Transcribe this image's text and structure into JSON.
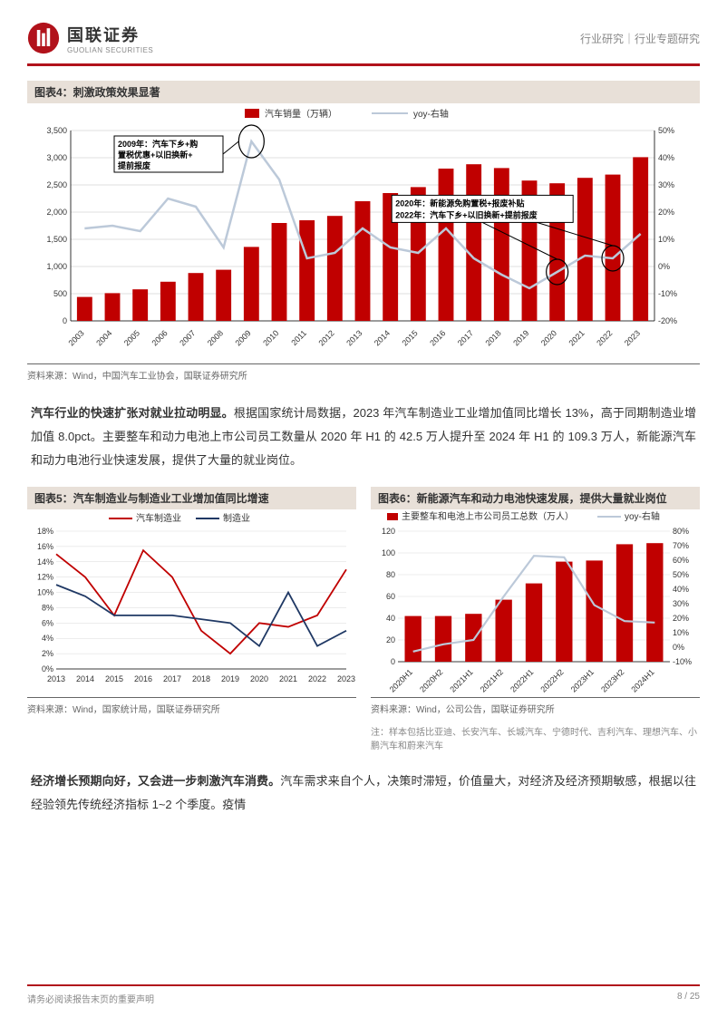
{
  "header": {
    "brand_cn": "国联证券",
    "brand_en": "GUOLIAN SECURITIES",
    "right": "行业研究｜行业专题研究",
    "logo_color": "#b1121b"
  },
  "fig4": {
    "title": "图表4：刺激政策效果显著",
    "legend_bar": "汽车销量（万辆）",
    "legend_line": "yoy-右轴",
    "bar_color": "#c00000",
    "line_color": "#bcc9d9",
    "years": [
      "2003",
      "2004",
      "2005",
      "2006",
      "2007",
      "2008",
      "2009",
      "2010",
      "2011",
      "2012",
      "2013",
      "2014",
      "2015",
      "2016",
      "2017",
      "2018",
      "2019",
      "2020",
      "2021",
      "2022",
      "2023"
    ],
    "values": [
      440,
      510,
      580,
      720,
      880,
      940,
      1360,
      1800,
      1850,
      1930,
      2200,
      2350,
      2460,
      2800,
      2880,
      2810,
      2580,
      2530,
      2630,
      2690,
      3010
    ],
    "yoy": [
      14,
      15,
      13,
      25,
      22,
      7,
      46,
      32,
      3,
      5,
      14,
      7,
      5,
      14,
      3,
      -3,
      -8,
      -2,
      4,
      3,
      12
    ],
    "y_left": {
      "min": 0,
      "max": 3500,
      "step": 500
    },
    "y_right": {
      "min": -20,
      "max": 50,
      "step": 10
    },
    "anno1_lines": [
      "2009年：汽车下乡+购",
      "置税优惠+以旧换新+",
      "提前报废"
    ],
    "anno2_lines": [
      "2020年：新能源免购置税+报废补贴",
      "2022年：汽车下乡+以旧换新+提前报废"
    ],
    "source": "资料来源：Wind，中国汽车工业协会，国联证券研究所",
    "plot_bg": "#ffffff",
    "grid_color": "#bfbfbf",
    "bar_width": 0.55
  },
  "paragraph1": {
    "bold": "汽车行业的快速扩张对就业拉动明显。",
    "rest": "根据国家统计局数据，2023 年汽车制造业工业增加值同比增长 13%，高于同期制造业增加值 8.0pct。主要整车和动力电池上市公司员工数量从 2020 年 H1 的 42.5 万人提升至 2024 年 H1 的 109.3 万人，新能源汽车和动力电池行业快速发展，提供了大量的就业岗位。"
  },
  "fig5": {
    "title": "图表5：汽车制造业与制造业工业增加值同比增速",
    "legend_a": "汽车制造业",
    "legend_b": "制造业",
    "color_a": "#c00000",
    "color_b": "#1f3864",
    "years": [
      "2013",
      "2014",
      "2015",
      "2016",
      "2017",
      "2018",
      "2019",
      "2020",
      "2021",
      "2022",
      "2023"
    ],
    "series_a": [
      15,
      12,
      7,
      15.5,
      12,
      5,
      2,
      6,
      5.5,
      7,
      13
    ],
    "series_b": [
      11,
      9.5,
      7,
      7,
      7,
      6.5,
      6,
      3,
      10,
      3,
      5
    ],
    "y": {
      "min": 0,
      "max": 18,
      "step": 2
    },
    "source": "资料来源：Wind，国家统计局，国联证券研究所",
    "grid_color": "#d9d9d9"
  },
  "fig6": {
    "title": "图表6：新能源汽车和动力电池快速发展，提供大量就业岗位",
    "legend_bar": "主要整车和电池上市公司员工总数（万人）",
    "legend_line": "yoy-右轴",
    "bar_color": "#c00000",
    "line_color": "#bcc9d9",
    "periods": [
      "2020H1",
      "2020H2",
      "2021H1",
      "2021H2",
      "2022H1",
      "2022H2",
      "2023H1",
      "2023H2",
      "2024H1"
    ],
    "values": [
      42,
      42,
      44,
      57,
      72,
      92,
      93,
      108,
      109
    ],
    "yoy": [
      -3,
      2,
      5,
      35,
      63,
      62,
      29,
      18,
      17
    ],
    "y_left": {
      "min": 0,
      "max": 120,
      "step": 20
    },
    "y_right": {
      "min": -10,
      "max": 80,
      "step": 10
    },
    "source": "资料来源：Wind，公司公告，国联证券研究所",
    "note": "注：样本包括比亚迪、长安汽车、长城汽车、宁德时代、吉利汽车、理想汽车、小鹏汽车和蔚来汽车",
    "grid_color": "#d9d9d9"
  },
  "paragraph2": {
    "bold": "经济增长预期向好，又会进一步刺激汽车消费。",
    "rest": "汽车需求来自个人，决策时滞短，价值量大，对经济及经济预期敏感，根据以往经验领先传统经济指标 1~2 个季度。疫情"
  },
  "footer": {
    "left": "请务必阅读报告末页的重要声明",
    "right": "8 / 25"
  }
}
